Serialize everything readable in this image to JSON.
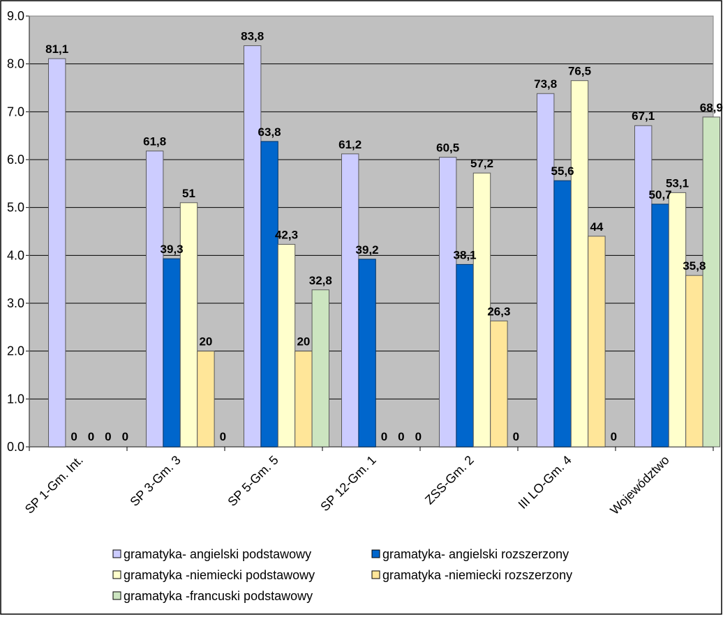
{
  "chart_data": {
    "type": "bar",
    "categories": [
      "SP 1-Gm. Int.",
      "SP 3-Gm. 3",
      "SP 5-Gm. 5",
      "SP 12-Gm. 1",
      "ZSS-Gm. 2",
      "III LO-Gm. 4",
      "Województwo"
    ],
    "series": [
      {
        "name": "gramatyka- angielski podstawowy",
        "color": "#ccccff",
        "values": [
          81.1,
          61.8,
          83.8,
          61.2,
          60.5,
          73.8,
          67.1
        ],
        "labels": [
          "81,1",
          "61,8",
          "83,8",
          "61,2",
          "60,5",
          "73,8",
          "67,1"
        ]
      },
      {
        "name": "gramatyka- angielski rozszerzony",
        "color": "#0066cc",
        "values": [
          0,
          39.3,
          63.8,
          39.2,
          38.1,
          55.6,
          50.7
        ],
        "labels": [
          "0",
          "39,3",
          "63,8",
          "39,2",
          "38,1",
          "55,6",
          "50,7"
        ]
      },
      {
        "name": "gramatyka -niemiecki podstawowy",
        "color": "#ffffcc",
        "values": [
          0,
          51,
          42.3,
          0,
          57.2,
          76.5,
          53.1
        ],
        "labels": [
          "0",
          "51",
          "42,3",
          "0",
          "57,2",
          "76,5",
          "53,1"
        ]
      },
      {
        "name": "gramatyka -niemiecki rozszerzony",
        "color": "#ffe699",
        "values": [
          0,
          20,
          20,
          0,
          26.3,
          44,
          35.8
        ],
        "labels": [
          "0",
          "20",
          "20",
          "0",
          "26,3",
          "44",
          "35,8"
        ]
      },
      {
        "name": "gramatyka -francuski podstawowy",
        "color": "#cce5c0",
        "values": [
          0,
          0,
          32.8,
          0,
          0,
          0,
          68.9
        ],
        "labels": [
          "0",
          "0",
          "32,8",
          "0",
          "0",
          "0",
          "68,9"
        ]
      }
    ],
    "yticks": [
      "0.0",
      "1.0",
      "2.0",
      "3.0",
      "4.0",
      "5.0",
      "6.0",
      "7.0",
      "8.0",
      "9.0"
    ],
    "ylim": [
      0,
      90
    ],
    "grid": true,
    "legend": "bottom",
    "plot_background": "#c0c0c0"
  }
}
